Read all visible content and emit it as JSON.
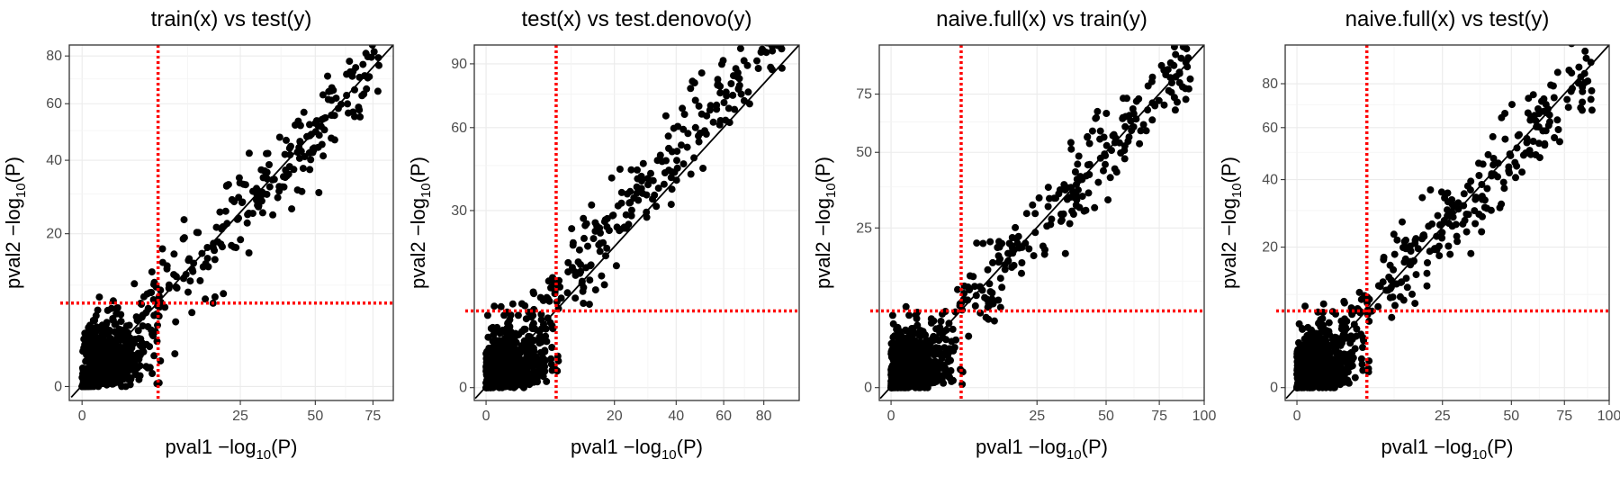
{
  "chart_data": [
    {
      "type": "scatter",
      "title": "train(x) vs test(y)",
      "xlabel": "pval1 −log",
      "ylabel": "pval2 −log",
      "sub": "10",
      "label_tail": "(P)",
      "x_ticks": [
        0,
        25,
        50,
        75
      ],
      "y_ticks": [
        0,
        20,
        40,
        60,
        80
      ],
      "threshold_x": 7.3,
      "threshold_y": 7.3,
      "max": 85,
      "grid": true,
      "diagonal": "identity",
      "threshold_color": "#ff0000",
      "point_color": "#000000"
    },
    {
      "type": "scatter",
      "title": "test(x) vs test.denovo(y)",
      "xlabel": "pval1 −log",
      "ylabel": "pval2 −log",
      "sub": "10",
      "label_tail": "(P)",
      "x_ticks": [
        0,
        20,
        40,
        60,
        80
      ],
      "y_ticks": [
        0,
        30,
        60,
        90
      ],
      "threshold_x": 7.3,
      "threshold_y": 7.3,
      "max": 100,
      "grid": true,
      "diagonal": "identity",
      "threshold_color": "#ff0000",
      "point_color": "#000000"
    },
    {
      "type": "scatter",
      "title": "naive.full(x) vs train(y)",
      "xlabel": "pval1 −log",
      "ylabel": "pval2 −log",
      "sub": "10",
      "label_tail": "(P)",
      "x_ticks": [
        0,
        25,
        50,
        75,
        100
      ],
      "y_ticks": [
        0,
        25,
        50,
        75
      ],
      "threshold_x": 7.3,
      "threshold_y": 7.3,
      "max": 100,
      "grid": true,
      "diagonal": "identity",
      "threshold_color": "#ff0000",
      "point_color": "#000000"
    },
    {
      "type": "scatter",
      "title": "naive.full(x) vs test(y)",
      "xlabel": "pval1 −log",
      "ylabel": "pval2 −log",
      "sub": "10",
      "label_tail": "(P)",
      "x_ticks": [
        0,
        25,
        50,
        75,
        100
      ],
      "y_ticks": [
        0,
        20,
        40,
        60,
        80
      ],
      "threshold_x": 7.3,
      "threshold_y": 7.3,
      "max": 100,
      "grid": true,
      "diagonal": "identity",
      "threshold_color": "#ff0000",
      "point_color": "#000000"
    }
  ]
}
